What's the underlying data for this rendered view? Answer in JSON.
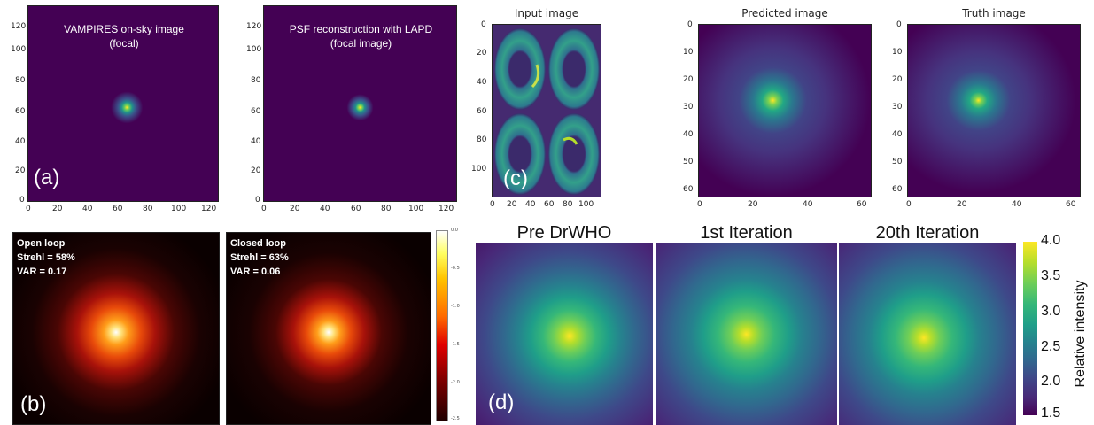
{
  "panel_a": {
    "label": "(a)",
    "left_title_line1": "VAMPIRES on-sky image",
    "left_title_line2": "(focal)",
    "right_title_line1": "PSF reconstruction with LAPD",
    "right_title_line2": "(focal image)",
    "y_ticks": [
      "120",
      "100",
      "80",
      "60",
      "40",
      "20",
      "0"
    ],
    "x_ticks": [
      "0",
      "20",
      "40",
      "60",
      "80",
      "100",
      "120"
    ],
    "bg_color": "#440154"
  },
  "panel_b": {
    "label": "(b)",
    "left_text": "Open loop\nStrehl = 58%\nVAR = 0.17",
    "right_text": "Closed loop\nStrehl = 63%\nVAR = 0.06",
    "colorbar_ticks": [
      "0.0",
      "-0.5",
      "-1.0",
      "-1.5",
      "-2.0",
      "-2.5"
    ]
  },
  "panel_c": {
    "label": "(c)",
    "titles": [
      "Input image",
      "Predicted image",
      "Truth image"
    ],
    "input_y_ticks": [
      "0",
      "20",
      "40",
      "60",
      "80",
      "100"
    ],
    "input_x_ticks": [
      "0",
      "20",
      "40",
      "60",
      "80",
      "100"
    ],
    "small_y_ticks": [
      "0",
      "10",
      "20",
      "30",
      "40",
      "50",
      "60"
    ],
    "small_x_ticks": [
      "0",
      "20",
      "40",
      "60"
    ]
  },
  "panel_d": {
    "label": "(d)",
    "titles": [
      "Pre DrWHO",
      "1st Iteration",
      "20th Iteration"
    ],
    "colorbar_label": "Relative intensity",
    "colorbar_ticks": [
      "4.0",
      "3.5",
      "3.0",
      "2.5",
      "2.0",
      "1.5"
    ]
  }
}
